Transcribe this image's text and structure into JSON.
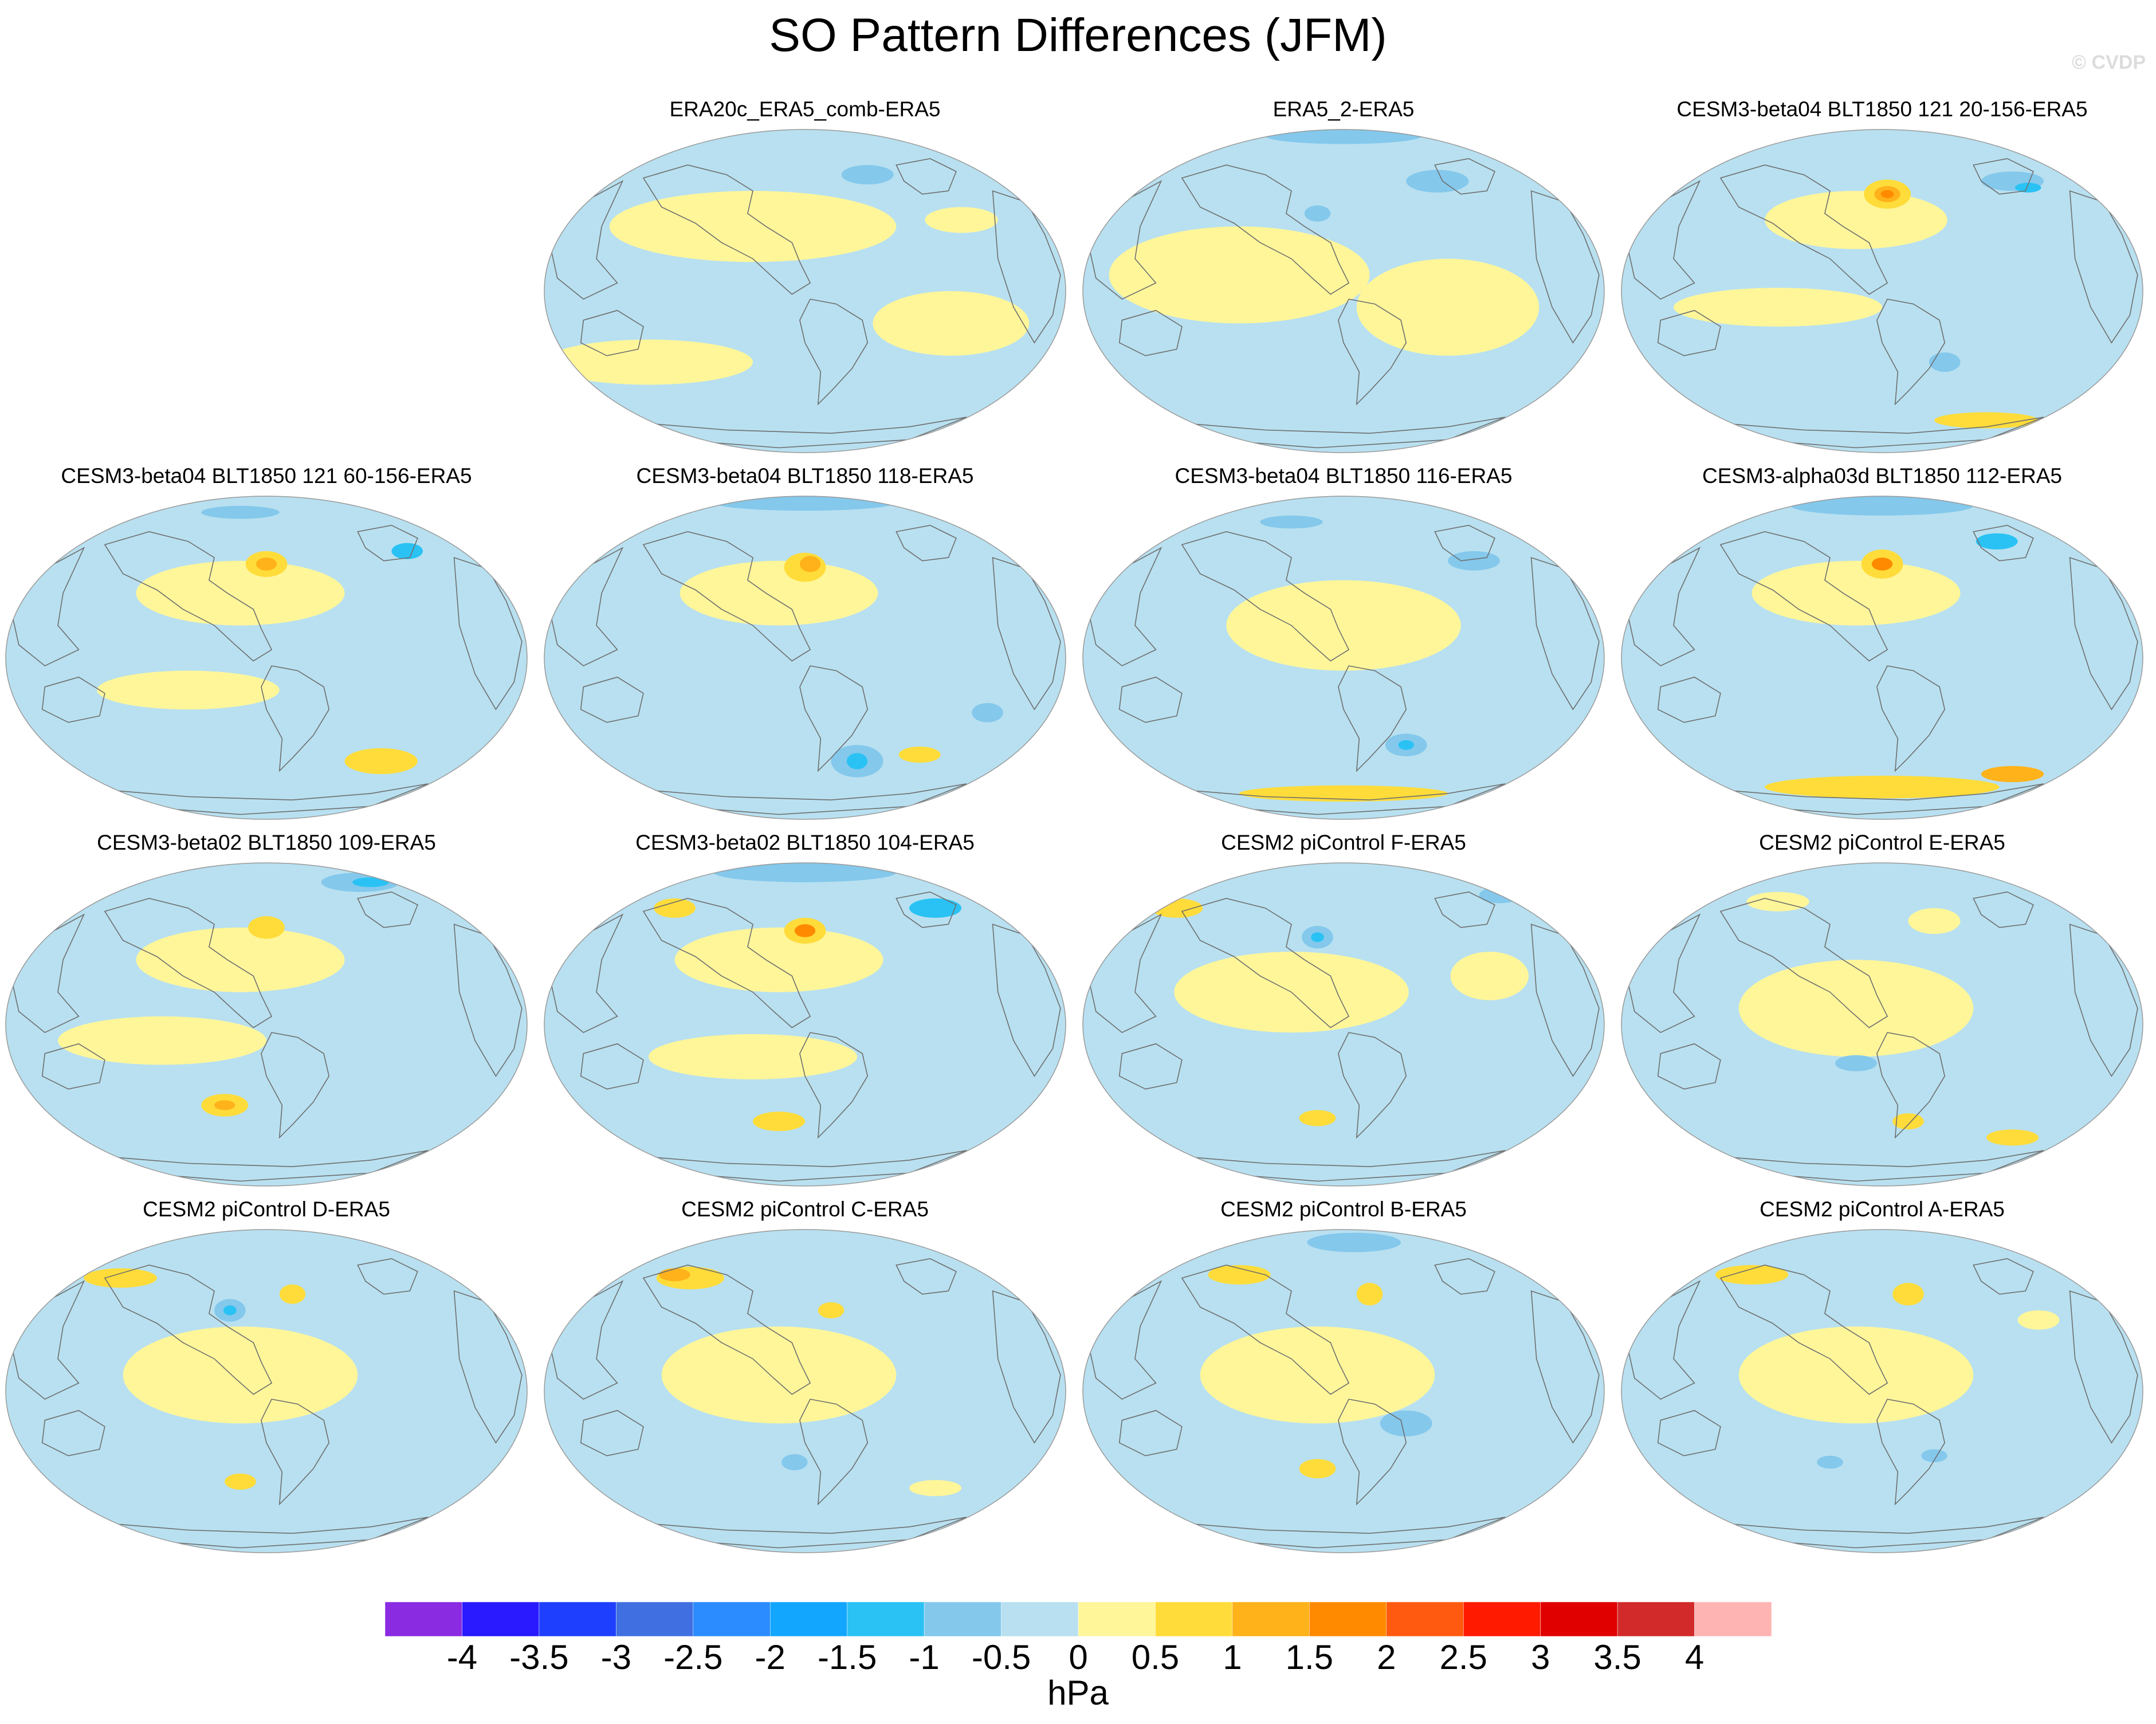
{
  "title": "SO Pattern Differences (JFM)",
  "credit": "© CVDP",
  "panels": [
    {
      "title": "ERA20c_ERA5_comb-ERA5",
      "pattern": 1
    },
    {
      "title": "ERA5_2-ERA5",
      "pattern": 2
    },
    {
      "title": "CESM3-beta04 BLT1850 121 20-156-ERA5",
      "pattern": 3
    },
    {
      "title": "CESM3-beta04 BLT1850 121 60-156-ERA5",
      "pattern": 4
    },
    {
      "title": "CESM3-beta04 BLT1850 118-ERA5",
      "pattern": 5
    },
    {
      "title": "CESM3-beta04 BLT1850 116-ERA5",
      "pattern": 6
    },
    {
      "title": "CESM3-alpha03d BLT1850 112-ERA5",
      "pattern": 7
    },
    {
      "title": "CESM3-beta02 BLT1850 109-ERA5",
      "pattern": 8
    },
    {
      "title": "CESM3-beta02 BLT1850 104-ERA5",
      "pattern": 9
    },
    {
      "title": "CESM2 piControl F-ERA5",
      "pattern": 10
    },
    {
      "title": "CESM2 piControl E-ERA5",
      "pattern": 11
    },
    {
      "title": "CESM2 piControl D-ERA5",
      "pattern": 12
    },
    {
      "title": "CESM2 piControl C-ERA5",
      "pattern": 13
    },
    {
      "title": "CESM2 piControl B-ERA5",
      "pattern": 14
    },
    {
      "title": "CESM2 piControl A-ERA5",
      "pattern": 15
    }
  ],
  "colorbar": {
    "colors": [
      "#8a2be2",
      "#2a1aff",
      "#1f3fff",
      "#3f6fe0",
      "#2a8cff",
      "#12a6ff",
      "#2ac2f4",
      "#84c8ec",
      "#b8e0f0",
      "#fff69a",
      "#ffdc3a",
      "#ffb21a",
      "#ff8a00",
      "#ff5a10",
      "#ff1a00",
      "#e00000",
      "#d22a2a",
      "#ffb4b4"
    ],
    "labels": [
      "-4",
      "-3.5",
      "-3",
      "-2.5",
      "-2",
      "-1.5",
      "-1",
      "-0.5",
      "0",
      "0.5",
      "1",
      "1.5",
      "2",
      "2.5",
      "3",
      "3.5",
      "4"
    ]
  },
  "units": "hPa"
}
